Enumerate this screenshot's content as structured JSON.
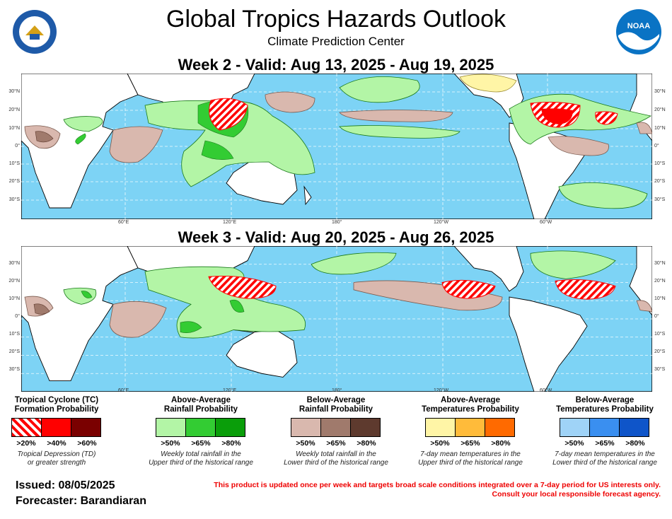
{
  "header": {
    "title": "Global Tropics Hazards Outlook",
    "subtitle": "Climate Prediction Center",
    "left_logo_text": "DEPARTMENT OF COMMERCE · UNITED STATES OF AMERICA",
    "right_logo_text": "NOAA"
  },
  "weeks": [
    {
      "title": "Week 2 - Valid: Aug 13, 2025 - Aug 19, 2025"
    },
    {
      "title": "Week 3 - Valid: Aug 20, 2025 - Aug 26, 2025"
    }
  ],
  "map_axes": {
    "lat_labels": [
      "30°N",
      "20°N",
      "10°N",
      "0°",
      "10°S",
      "20°S",
      "30°S"
    ],
    "lon_labels": [
      "60°E",
      "120°E",
      "180°",
      "120°W",
      "60°W"
    ]
  },
  "legend": [
    {
      "title_line1": "Tropical Cyclone (TC)",
      "title_line2": "Formation Probability",
      "colors": [
        "hatch",
        "#ff0000",
        "#7a0000"
      ],
      "labels": [
        ">20%",
        ">40%",
        ">60%"
      ],
      "note_line1": "Tropical Depression (TD)",
      "note_line2": "or greater strength"
    },
    {
      "title_line1": "Above-Average",
      "title_line2": "Rainfall Probability",
      "colors": [
        "#b3f5a6",
        "#33cc33",
        "#0a9e0a"
      ],
      "labels": [
        ">50%",
        ">65%",
        ">80%"
      ],
      "note_line1": "Weekly total rainfall in the",
      "note_line2": "Upper third of the historical range"
    },
    {
      "title_line1": "Below-Average",
      "title_line2": "Rainfall Probability",
      "colors": [
        "#d9b8ae",
        "#a07a6c",
        "#5e3a2e"
      ],
      "labels": [
        ">50%",
        ">65%",
        ">80%"
      ],
      "note_line1": "Weekly total rainfall in the",
      "note_line2": "Lower third of the historical range"
    },
    {
      "title_line1": "Above-Average",
      "title_line2": "Temperatures Probability",
      "colors": [
        "#fff5a6",
        "#ffbb3a",
        "#ff6a00"
      ],
      "labels": [
        ">50%",
        ">65%",
        ">80%"
      ],
      "note_line1": "7-day mean temperatures in the",
      "note_line2": "Upper third of the historical range"
    },
    {
      "title_line1": "Below-Average",
      "title_line2": "Temperatures Probability",
      "colors": [
        "#9fd3f7",
        "#3a8ff0",
        "#0f55c9"
      ],
      "labels": [
        ">50%",
        ">65%",
        ">80%"
      ],
      "note_line1": "7-day mean temperatures in the",
      "note_line2": "Lower third of the historical range"
    }
  ],
  "footer": {
    "issued": "Issued: 08/05/2025",
    "forecaster": "Forecaster: Barandiaran",
    "disclaimer_line1": "This product is updated once per week and targets broad scale conditions integrated over a 7-day period for US interests only.",
    "disclaimer_line2": "Consult your local responsible forecast agency."
  },
  "colors": {
    "ocean": "#7dd3f5",
    "land": "#ffffff",
    "tc_hatch": "#ff0000"
  }
}
